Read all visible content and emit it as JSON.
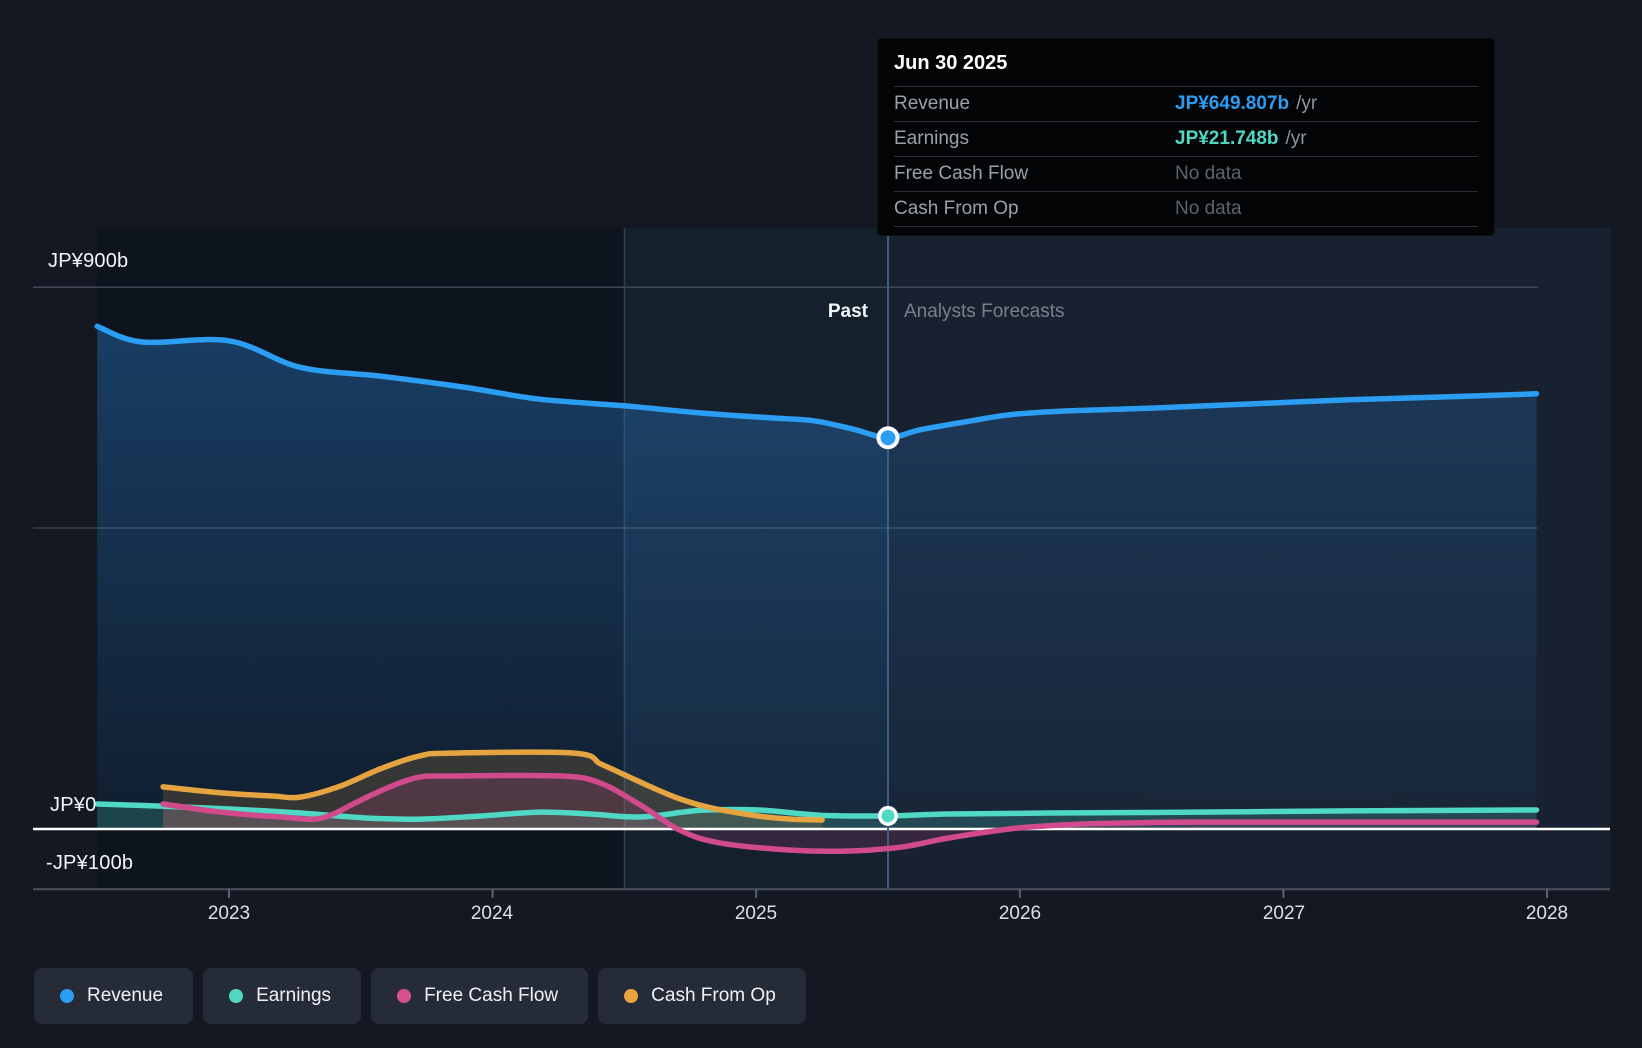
{
  "tooltip": {
    "date": "Jun 30 2025",
    "rows": [
      {
        "label": "Revenue",
        "value": "JP¥649.807b",
        "suffix": "/yr",
        "color": "#2b9df2"
      },
      {
        "label": "Earnings",
        "value": "JP¥21.748b",
        "suffix": "/yr",
        "color": "#4fd8c3"
      },
      {
        "label": "Free Cash Flow",
        "value": "No data",
        "suffix": "",
        "color": "#5d646d"
      },
      {
        "label": "Cash From Op",
        "value": "No data",
        "suffix": "",
        "color": "#5d646d"
      }
    ]
  },
  "annotations": {
    "past_label": "Past",
    "forecast_label": "Analysts Forecasts"
  },
  "axes": {
    "x_ticks": [
      {
        "label": "2023",
        "year": 2023
      },
      {
        "label": "2024",
        "year": 2024
      },
      {
        "label": "2025",
        "year": 2025
      },
      {
        "label": "2026",
        "year": 2026
      },
      {
        "label": "2027",
        "year": 2027
      },
      {
        "label": "2028",
        "year": 2028
      }
    ],
    "y_gridlines": [
      {
        "value": 900,
        "label": "JP¥900b"
      },
      {
        "value": 500,
        "label": ""
      },
      {
        "value": 0,
        "label": "JP¥0"
      },
      {
        "value": -100,
        "label": "-JP¥100b"
      }
    ]
  },
  "legend": {
    "items": [
      {
        "label": "Revenue",
        "color": "#2b9df2"
      },
      {
        "label": "Earnings",
        "color": "#4fd8c3"
      },
      {
        "label": "Free Cash Flow",
        "color": "#d6508f"
      },
      {
        "label": "Cash From Op",
        "color": "#e8a43e"
      }
    ]
  },
  "chart_data": {
    "type": "line",
    "title": "Earnings and Revenue Growth Forecast",
    "unit": "JP¥ billions per year",
    "x_range": [
      2022.4,
      2028.3
    ],
    "y_gridline_values": [
      900,
      500,
      0,
      -100
    ],
    "divider_x": 2025.5,
    "highlight_band": [
      2024.5,
      2025.5
    ],
    "grid": true,
    "legend_position": "bottom",
    "series": [
      {
        "name": "Revenue",
        "color": "#2b9df2",
        "points": [
          [
            2022.5,
            835
          ],
          [
            2022.67,
            809
          ],
          [
            2023.0,
            811
          ],
          [
            2023.27,
            767
          ],
          [
            2023.58,
            752
          ],
          [
            2023.89,
            734
          ],
          [
            2024.18,
            714
          ],
          [
            2024.5,
            703
          ],
          [
            2024.79,
            691
          ],
          [
            2025.05,
            683
          ],
          [
            2025.22,
            678
          ],
          [
            2025.37,
            664
          ],
          [
            2025.5,
            649.807
          ],
          [
            2025.62,
            663
          ],
          [
            2025.79,
            676
          ],
          [
            2025.96,
            688
          ],
          [
            2026.15,
            694
          ],
          [
            2026.49,
            699
          ],
          [
            2026.87,
            706
          ],
          [
            2027.25,
            713
          ],
          [
            2027.63,
            718
          ],
          [
            2027.96,
            723
          ]
        ]
      },
      {
        "name": "Earnings",
        "color": "#4fd8c3",
        "points": [
          [
            2022.5,
            41.5
          ],
          [
            2022.74,
            38
          ],
          [
            2023.01,
            33
          ],
          [
            2023.27,
            26.5
          ],
          [
            2023.54,
            18
          ],
          [
            2023.73,
            16.5
          ],
          [
            2023.95,
            21.5
          ],
          [
            2024.18,
            28
          ],
          [
            2024.37,
            25
          ],
          [
            2024.56,
            20
          ],
          [
            2024.79,
            31
          ],
          [
            2025.01,
            31.5
          ],
          [
            2025.24,
            23
          ],
          [
            2025.5,
            21.748
          ],
          [
            2025.73,
            25
          ],
          [
            2026.11,
            26.5
          ],
          [
            2026.68,
            28
          ],
          [
            2027.25,
            30
          ],
          [
            2027.96,
            31.5
          ]
        ]
      },
      {
        "name": "Free Cash Flow",
        "color": "#d04a8c",
        "points": [
          [
            2022.75,
            41.5
          ],
          [
            2022.97,
            28
          ],
          [
            2023.2,
            20
          ],
          [
            2023.35,
            18
          ],
          [
            2023.5,
            48
          ],
          [
            2023.61,
            70
          ],
          [
            2023.72,
            86
          ],
          [
            2023.84,
            88
          ],
          [
            2024.26,
            88
          ],
          [
            2024.41,
            76
          ],
          [
            2024.56,
            40
          ],
          [
            2024.71,
            -2
          ],
          [
            2024.86,
            -23
          ],
          [
            2025.13,
            -35
          ],
          [
            2025.36,
            -36.5
          ],
          [
            2025.55,
            -30
          ],
          [
            2025.73,
            -15
          ],
          [
            2025.96,
            0
          ],
          [
            2026.15,
            6.5
          ],
          [
            2026.38,
            10
          ],
          [
            2026.68,
            11.5
          ],
          [
            2027.25,
            11.5
          ],
          [
            2027.96,
            11.5
          ]
        ]
      },
      {
        "name": "Cash From Op",
        "color": "#e6a440",
        "points": [
          [
            2022.75,
            70
          ],
          [
            2022.97,
            60
          ],
          [
            2023.16,
            55
          ],
          [
            2023.27,
            53
          ],
          [
            2023.42,
            71
          ],
          [
            2023.58,
            101
          ],
          [
            2023.72,
            121
          ],
          [
            2023.84,
            126
          ],
          [
            2024.31,
            126
          ],
          [
            2024.41,
            108
          ],
          [
            2024.5,
            90
          ],
          [
            2024.6,
            70
          ],
          [
            2024.71,
            50
          ],
          [
            2024.83,
            35
          ],
          [
            2025.01,
            21.5
          ],
          [
            2025.13,
            16.5
          ],
          [
            2025.25,
            15
          ]
        ]
      }
    ],
    "markers": [
      {
        "series": "Revenue",
        "x": 2025.5,
        "value": 649.807
      },
      {
        "series": "Earnings",
        "x": 2025.5,
        "value": 21.748
      }
    ]
  }
}
